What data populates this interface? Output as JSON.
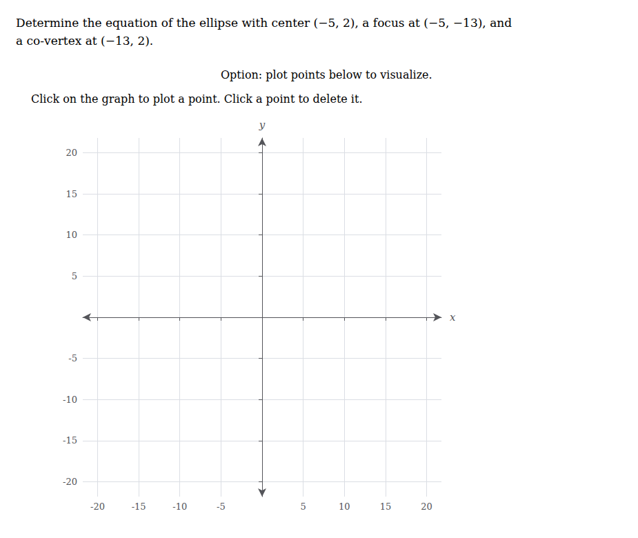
{
  "chart_data": {
    "type": "scatter",
    "title": "Determine the equation of the ellipse with center (−5, 2), a focus at (−5, −13), and\na co-vertex at (−13, 2).",
    "annotations": [
      "Option: plot points below to visualize.",
      "Click on the graph to plot a point. Click a point to delete it."
    ],
    "xlabel": "x",
    "ylabel": "y",
    "xlim": [
      -21.8,
      21.8
    ],
    "ylim": [
      -21.8,
      21.8
    ],
    "xticks": [
      -20,
      -15,
      -10,
      -5,
      5,
      10,
      15,
      20
    ],
    "yticks": [
      -20,
      -15,
      -10,
      -5,
      5,
      10,
      15,
      20
    ],
    "grid": true
  }
}
